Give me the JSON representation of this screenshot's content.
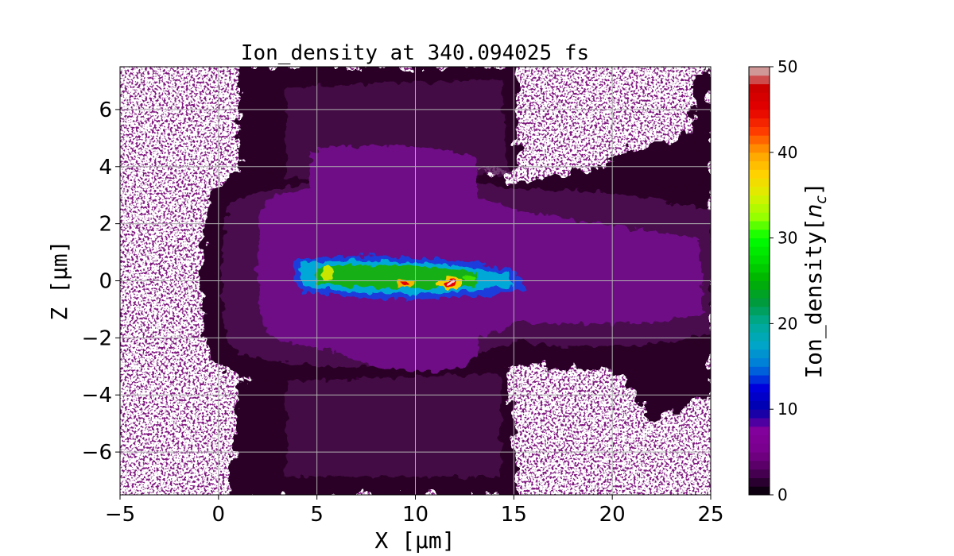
{
  "chart_data": {
    "type": "heatmap",
    "title": "Ion_density at 340.094025 fs",
    "xlabel": "X [μm]",
    "ylabel": "Z [μm]",
    "xlim": [
      -5,
      25
    ],
    "ylim": [
      -7.5,
      7.5
    ],
    "xticks": [
      -5,
      0,
      5,
      10,
      15,
      20,
      25
    ],
    "yticks": [
      -6,
      -4,
      -2,
      0,
      2,
      4,
      6
    ],
    "xtick_labels": [
      "−5",
      "0",
      "5",
      "10",
      "15",
      "20",
      "25"
    ],
    "ytick_labels": [
      "−6",
      "−4",
      "−2",
      "0",
      "2",
      "4",
      "6"
    ],
    "grid": true,
    "colorbar": {
      "label_text": "Ion_density[",
      "label_unit_n": "n",
      "label_unit_sub": "c",
      "label_close": "]",
      "range": [
        0,
        50
      ],
      "ticks": [
        0,
        10,
        20,
        30,
        40,
        50
      ],
      "tick_labels": [
        "0",
        "10",
        "20",
        "30",
        "40",
        "50"
      ],
      "colormap": "nipy_spectral"
    },
    "features": [
      {
        "name": "background plasma halo",
        "x_range": [
          0,
          25
        ],
        "z_range": [
          -7.5,
          7.5
        ],
        "value": 1
      },
      {
        "name": "dense ion channel",
        "x_range": [
          4,
          15.5
        ],
        "z_range": [
          -0.6,
          0.6
        ],
        "value": 20
      },
      {
        "name": "peak spot",
        "x": 9.6,
        "z": -0.1,
        "value": 45
      },
      {
        "name": "peak spot",
        "x": 11.8,
        "z": -0.1,
        "value": 48
      },
      {
        "name": "peak spot",
        "x": 5.6,
        "z": 0.3,
        "value": 35
      }
    ]
  }
}
